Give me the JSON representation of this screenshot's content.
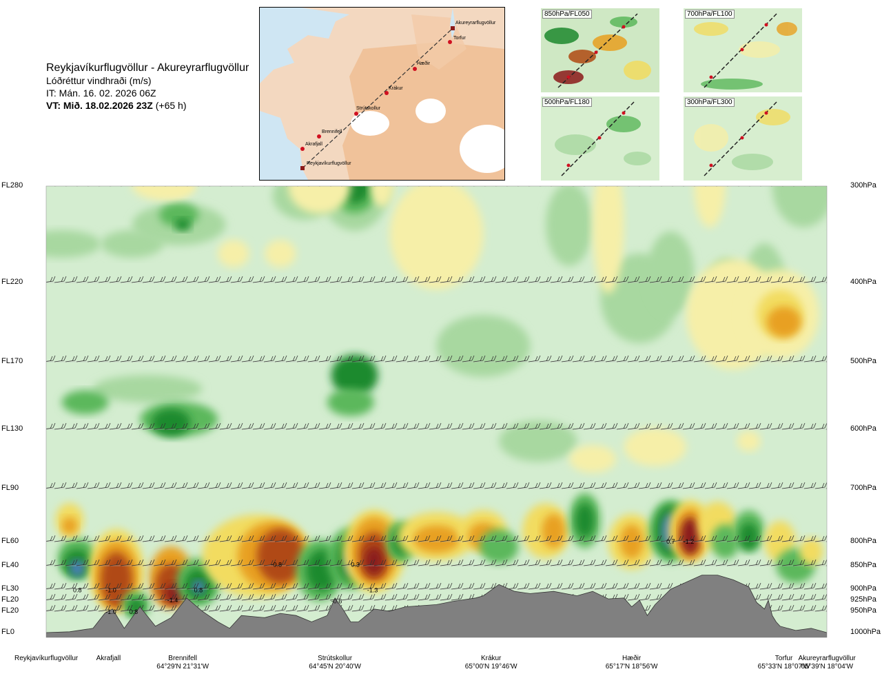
{
  "header": {
    "route": "Reykjavíkurflugvöllur - Akureyrarflugvöllur",
    "parameter": "Lóðréttur vindhraði (m/s)",
    "issue_time": "IT: Mán. 16. 02. 2026 06Z",
    "valid_time": "VT: Mið. 18.02.2026 23Z",
    "lead_time": "(+65 h)"
  },
  "map": {
    "labels": [
      "Akureyrarflugvöllur",
      "Torfur",
      "Hæðir",
      "Krákur",
      "Strútskollur",
      "Brennifell",
      "Akrafjall",
      "Reykjavíkurflugvöllur"
    ]
  },
  "minimaps": [
    {
      "label": "850hPa/FL050"
    },
    {
      "label": "700hPa/FL100"
    },
    {
      "label": "500hPa/FL180"
    },
    {
      "label": "300hPa/FL300"
    }
  ],
  "colors": {
    "strong_down": "#8b1a1a",
    "down2": "#b04a12",
    "down1": "#e8a020",
    "down0": "#f2dc60",
    "weak_down": "#f6efa8",
    "neutral": "#d4edd0",
    "weak_up": "#a8d8a0",
    "up1": "#5cb85c",
    "up2": "#1e8a2e",
    "strong_up": "#4a7fb8",
    "terrain": "#808080"
  },
  "chart_data": {
    "type": "heatmap",
    "title": "Lóðréttur vindhraði (m/s)",
    "x_waypoints": [
      {
        "name": "Reykjavíkurflugvöllur",
        "coord": "",
        "pos": 0.0
      },
      {
        "name": "Akrafjall",
        "coord": "",
        "pos": 0.08
      },
      {
        "name": "Brennifell",
        "coord": "64°29'N 21°31'W",
        "pos": 0.175
      },
      {
        "name": "Strútskollur",
        "coord": "64°45'N 20°40'W",
        "pos": 0.37
      },
      {
        "name": "Krákur",
        "coord": "65°00'N 19°46'W",
        "pos": 0.57
      },
      {
        "name": "Hæðir",
        "coord": "65°17'N 18°56'W",
        "pos": 0.75
      },
      {
        "name": "Torfur",
        "coord": "65°33'N 18°07'W",
        "pos": 0.945
      },
      {
        "name": "Akureyrarflugvöllur",
        "coord": "65°39'N 18°04'W",
        "pos": 1.0
      }
    ],
    "y_levels": [
      {
        "fl": "FL280",
        "hpa": "300hPa",
        "p": 300
      },
      {
        "fl": "FL220",
        "hpa": "400hPa",
        "p": 400
      },
      {
        "fl": "FL170",
        "hpa": "500hPa",
        "p": 500
      },
      {
        "fl": "FL130",
        "hpa": "600hPa",
        "p": 600
      },
      {
        "fl": "FL90",
        "hpa": "700hPa",
        "p": 700
      },
      {
        "fl": "FL60",
        "hpa": "800hPa",
        "p": 800
      },
      {
        "fl": "FL40",
        "hpa": "850hPa",
        "p": 850
      },
      {
        "fl": "FL30",
        "hpa": "900hPa",
        "p": 900
      },
      {
        "fl": "FL20",
        "hpa": "925hPa",
        "p": 925
      },
      {
        "fl": "FL20",
        "hpa": "950hPa",
        "p": 950
      },
      {
        "fl": "FL0",
        "hpa": "1000hPa",
        "p": 1000
      }
    ],
    "annotations": [
      {
        "text": "0.8",
        "pos": 0.04,
        "p": 902
      },
      {
        "text": "-1.0",
        "pos": 0.083,
        "p": 902
      },
      {
        "text": "-1.0",
        "pos": 0.083,
        "p": 952
      },
      {
        "text": "0.8",
        "pos": 0.112,
        "p": 952
      },
      {
        "text": "-1.4",
        "pos": 0.162,
        "p": 925
      },
      {
        "text": "0.8",
        "pos": 0.195,
        "p": 902
      },
      {
        "text": "-0.8",
        "pos": 0.295,
        "p": 848
      },
      {
        "text": "0.3",
        "pos": 0.396,
        "p": 848
      },
      {
        "text": "-0.6",
        "pos": 0.372,
        "p": 927
      },
      {
        "text": "-1.3",
        "pos": 0.418,
        "p": 902
      },
      {
        "text": "0.7",
        "pos": 0.8,
        "p": 800
      },
      {
        "text": "-1.2",
        "pos": 0.823,
        "p": 800
      }
    ]
  }
}
